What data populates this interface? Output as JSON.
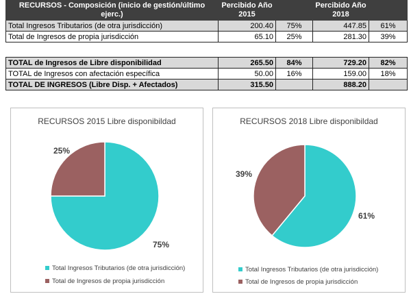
{
  "table": {
    "header": {
      "c1": "RECURSOS - Composición (inicio de gestión/último ejerc.)",
      "c2": "Percibido Año 2015",
      "c3": "",
      "c4": "Percibido Año 2018",
      "c5": ""
    },
    "rows1": [
      {
        "label": "Total Ingresos Tributarios (de otra jurisdicción)",
        "v2015": "200.40",
        "p2015": "75%",
        "v2018": "447.85",
        "p2018": "61%"
      },
      {
        "label": "Total de Ingresos de propia jurisdicción",
        "v2015": "65.10",
        "p2015": "25%",
        "v2018": "281.30",
        "p2018": "39%"
      }
    ],
    "rows2": [
      {
        "label": "TOTAL de Ingresos de Libre disponibilidad",
        "v2015": "265.50",
        "p2015": "84%",
        "v2018": "729.20",
        "p2018": "82%"
      },
      {
        "label": "TOTAL de Ingresos con afectación específica",
        "v2015": "50.00",
        "p2015": "16%",
        "v2018": "159.00",
        "p2018": "18%"
      },
      {
        "label": "TOTAL DE INGRESOS (Libre Disp. + Afectados)",
        "v2015": "315.50",
        "p2015": "",
        "v2018": "888.20",
        "p2018": ""
      }
    ]
  },
  "chart_data": [
    {
      "type": "pie",
      "title": "RECURSOS 2015 Libre disponibildad",
      "categories": [
        "Total Ingresos Tributarios (de otra jurisdicción)",
        "Total de Ingresos de propia jurisdicción"
      ],
      "values": [
        75,
        25
      ],
      "labels": [
        "75%",
        "25%"
      ],
      "colors": [
        "#33CCCC",
        "#9B6161"
      ],
      "legend": "bottom"
    },
    {
      "type": "pie",
      "title": "RECURSOS 2018 Libre disponibildad",
      "categories": [
        "Total Ingresos Tributarios (de otra jurisdicción)",
        "Total de Ingresos de propia jurisdicción"
      ],
      "values": [
        61,
        39
      ],
      "labels": [
        "61%",
        "39%"
      ],
      "colors": [
        "#33CCCC",
        "#9B6161"
      ],
      "legend": "bottom"
    }
  ]
}
